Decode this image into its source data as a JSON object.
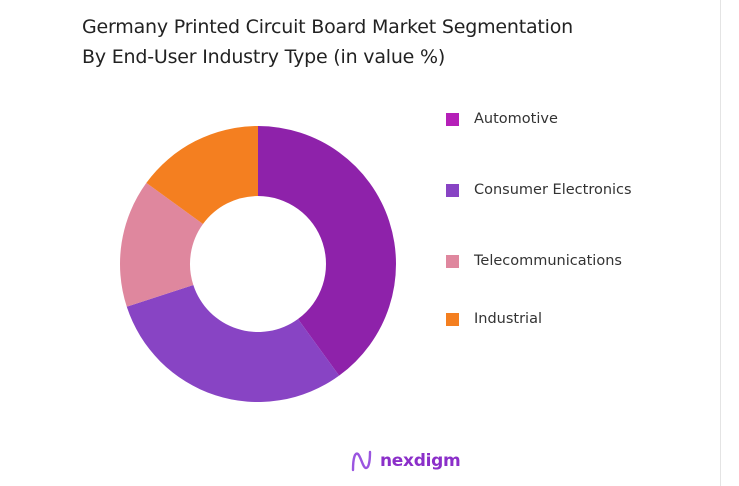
{
  "chart_data": {
    "type": "pie",
    "variant": "donut",
    "title_lines": [
      "Germany Printed Circuit Board Market Segmentation",
      "By End-User Industry Type (in value %)"
    ],
    "unit": "%",
    "categories": [
      "Automotive",
      "Consumer Electronics",
      "Telecommunications",
      "Industrial"
    ],
    "values": [
      40,
      30,
      15,
      15
    ],
    "colors": [
      "#8E22AA",
      "#8844C4",
      "#DF879E",
      "#F47F20"
    ],
    "legend_colors": [
      "#B520B8",
      "#8844C4",
      "#DF879E",
      "#F47F20"
    ],
    "legend_position": "right"
  },
  "branding": {
    "logo_text": "nexdigm"
  }
}
